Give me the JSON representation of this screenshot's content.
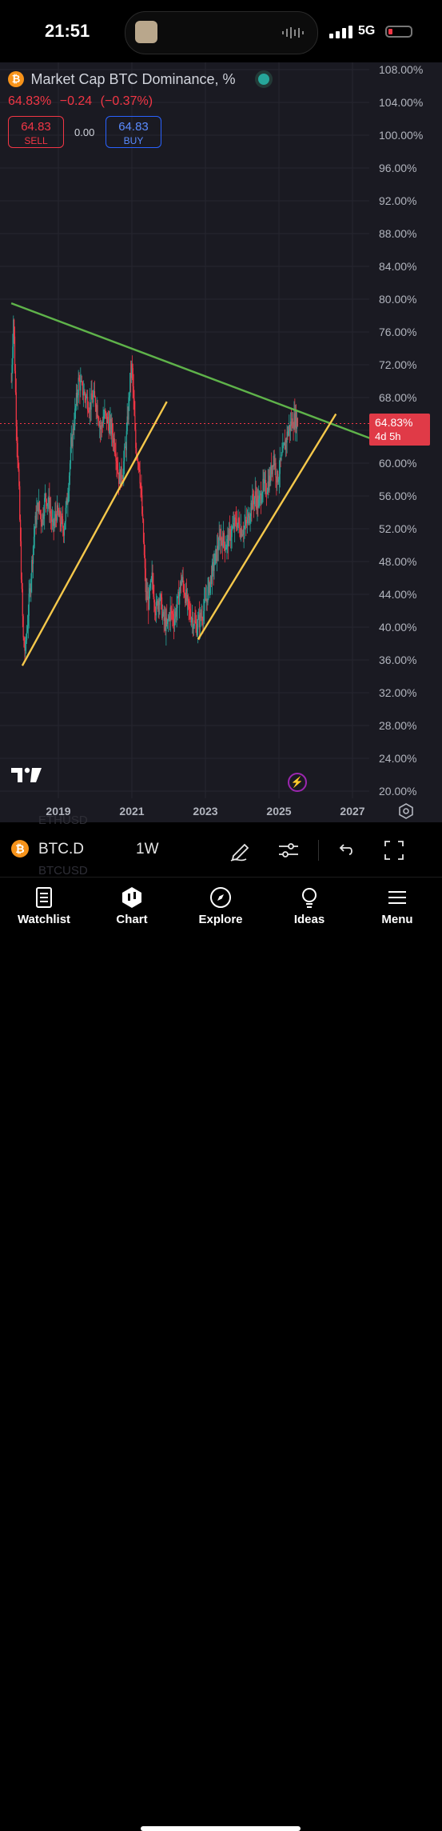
{
  "status_bar": {
    "time": "21:51",
    "network": "5G",
    "battery_color": "#f23645"
  },
  "header": {
    "symbol_icon": "bitcoin-icon",
    "title": "Market Cap BTC Dominance, %",
    "last_price": "64.83%",
    "change": "−0.24",
    "change_pct": "(−0.37%)",
    "sell_price": "64.83",
    "sell_label": "SELL",
    "spread": "0.00",
    "buy_price": "64.83",
    "buy_label": "BUY"
  },
  "price_label": {
    "value": "64.83%",
    "countdown": "4d 5h"
  },
  "bottom_symbol_bar": {
    "symbol": "BTC.D",
    "interval": "1W",
    "ghost_symbols": [
      "ETHUSD",
      "BTCUSD"
    ]
  },
  "bottom_nav": [
    {
      "label": "Watchlist",
      "icon": "watchlist-icon"
    },
    {
      "label": "Chart",
      "icon": "chart-icon"
    },
    {
      "label": "Explore",
      "icon": "compass-icon"
    },
    {
      "label": "Ideas",
      "icon": "lightbulb-icon"
    },
    {
      "label": "Menu",
      "icon": "hamburger-icon"
    }
  ],
  "chart_data": {
    "type": "candlestick",
    "title": "Market Cap BTC Dominance, %",
    "interval": "1W",
    "x_ticks": [
      "2019",
      "2021",
      "2023",
      "2025",
      "2027"
    ],
    "y_ticks": [
      "108.00%",
      "104.00%",
      "100.00%",
      "96.00%",
      "92.00%",
      "88.00%",
      "84.00%",
      "80.00%",
      "76.00%",
      "72.00%",
      "68.00%",
      "64.00%",
      "60.00%",
      "56.00%",
      "52.00%",
      "48.00%",
      "44.00%",
      "40.00%",
      "36.00%",
      "32.00%",
      "28.00%",
      "24.00%",
      "20.00%"
    ],
    "ylim": [
      20,
      108
    ],
    "xlim": [
      2017.7,
      2027.5
    ],
    "up_color": "#26a69a",
    "down_color": "#f23645",
    "last_value": 64.83,
    "series_path": [
      [
        2017.72,
        70
      ],
      [
        2017.78,
        78
      ],
      [
        2017.85,
        66
      ],
      [
        2017.92,
        58
      ],
      [
        2018.0,
        45
      ],
      [
        2018.05,
        38
      ],
      [
        2018.1,
        37
      ],
      [
        2018.15,
        40
      ],
      [
        2018.25,
        46
      ],
      [
        2018.35,
        52
      ],
      [
        2018.45,
        55
      ],
      [
        2018.55,
        53
      ],
      [
        2018.65,
        56
      ],
      [
        2018.75,
        55
      ],
      [
        2018.85,
        52
      ],
      [
        2018.95,
        54
      ],
      [
        2019.05,
        53
      ],
      [
        2019.15,
        52
      ],
      [
        2019.25,
        56
      ],
      [
        2019.35,
        62
      ],
      [
        2019.45,
        66
      ],
      [
        2019.55,
        70
      ],
      [
        2019.65,
        69
      ],
      [
        2019.75,
        68
      ],
      [
        2019.85,
        67
      ],
      [
        2019.95,
        68
      ],
      [
        2020.05,
        67
      ],
      [
        2020.15,
        64
      ],
      [
        2020.25,
        66
      ],
      [
        2020.35,
        65
      ],
      [
        2020.45,
        64
      ],
      [
        2020.55,
        62
      ],
      [
        2020.65,
        58
      ],
      [
        2020.75,
        59
      ],
      [
        2020.85,
        63
      ],
      [
        2020.95,
        70
      ],
      [
        2021.0,
        72
      ],
      [
        2021.1,
        62
      ],
      [
        2021.2,
        60
      ],
      [
        2021.3,
        52
      ],
      [
        2021.38,
        44
      ],
      [
        2021.45,
        43
      ],
      [
        2021.55,
        46
      ],
      [
        2021.65,
        42
      ],
      [
        2021.75,
        44
      ],
      [
        2021.85,
        41
      ],
      [
        2021.95,
        40
      ],
      [
        2022.05,
        42
      ],
      [
        2022.15,
        41
      ],
      [
        2022.25,
        43
      ],
      [
        2022.35,
        46
      ],
      [
        2022.45,
        44
      ],
      [
        2022.55,
        42
      ],
      [
        2022.65,
        41
      ],
      [
        2022.75,
        40
      ],
      [
        2022.85,
        41
      ],
      [
        2022.95,
        42
      ],
      [
        2023.05,
        44
      ],
      [
        2023.15,
        46
      ],
      [
        2023.25,
        48
      ],
      [
        2023.35,
        50
      ],
      [
        2023.45,
        51
      ],
      [
        2023.55,
        50
      ],
      [
        2023.65,
        51
      ],
      [
        2023.75,
        52
      ],
      [
        2023.85,
        53
      ],
      [
        2023.95,
        52
      ],
      [
        2024.05,
        52
      ],
      [
        2024.15,
        53
      ],
      [
        2024.25,
        55
      ],
      [
        2024.35,
        56
      ],
      [
        2024.45,
        55
      ],
      [
        2024.55,
        57
      ],
      [
        2024.65,
        57
      ],
      [
        2024.75,
        58
      ],
      [
        2024.85,
        61
      ],
      [
        2024.95,
        58
      ],
      [
        2025.05,
        60
      ],
      [
        2025.15,
        62
      ],
      [
        2025.25,
        64
      ],
      [
        2025.35,
        65
      ],
      [
        2025.45,
        65.5
      ],
      [
        2025.52,
        64.83
      ]
    ],
    "trendlines": [
      {
        "color": "#5fb34a",
        "from": [
          2017.72,
          79.5
        ],
        "to": [
          2027.5,
          63.0
        ]
      },
      {
        "color": "#f5c84b",
        "from": [
          2018.02,
          35.3
        ],
        "to": [
          2021.95,
          67.5
        ]
      },
      {
        "color": "#f5c84b",
        "from": [
          2022.8,
          38.5
        ],
        "to": [
          2026.55,
          66.0
        ]
      }
    ]
  }
}
